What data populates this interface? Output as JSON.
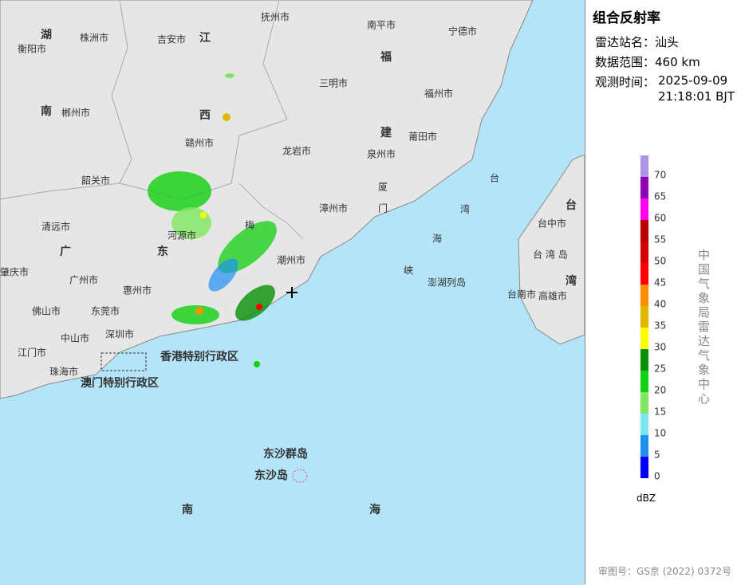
{
  "header": {
    "title": "组合反射率",
    "station_label": "雷达站名：",
    "station": "汕头",
    "range_label": "数据范围：",
    "range": "460 km",
    "time_label": "观测时间：",
    "date": "2025-09-09",
    "time": "21:18:01 BJT"
  },
  "legend": {
    "unit": "dBZ",
    "items": [
      {
        "value": 0,
        "color": "#0000f6"
      },
      {
        "value": 5,
        "color": "#1e90f0"
      },
      {
        "value": 10,
        "color": "#7ae6f0"
      },
      {
        "value": 15,
        "color": "#80e860"
      },
      {
        "value": 20,
        "color": "#10d010"
      },
      {
        "value": 25,
        "color": "#089008"
      },
      {
        "value": 30,
        "color": "#ffff00"
      },
      {
        "value": 35,
        "color": "#e0b800"
      },
      {
        "value": 40,
        "color": "#ff9000"
      },
      {
        "value": 45,
        "color": "#ff0000"
      },
      {
        "value": 50,
        "color": "#d40000"
      },
      {
        "value": 55,
        "color": "#b80000"
      },
      {
        "value": 60,
        "color": "#ff00f0"
      },
      {
        "value": 65,
        "color": "#9000b0"
      },
      {
        "value": 70,
        "color": "#b094e8"
      }
    ]
  },
  "credit": "中国气象局雷达气象中心",
  "footer": "审图号：GS京 (2022) 0372号",
  "map": {
    "labels": [
      "湖",
      "南",
      "株洲市",
      "衡阳市",
      "吉安市",
      "江",
      "西",
      "抚州市",
      "南平市",
      "宁德市",
      "福",
      "建",
      "郴州市",
      "三明市",
      "福州市",
      "赣州市",
      "莆田市",
      "龙岩市",
      "泉州市",
      "韶关市",
      "厦",
      "门",
      "漳州市",
      "台",
      "湾",
      "海",
      "峡",
      "台",
      "湾",
      "台中市",
      "台 湾 岛",
      "澎湖列岛",
      "台南市",
      "高雄市",
      "清远市",
      "广",
      "东",
      "河源市",
      "肇庆市",
      "广州市",
      "惠州市",
      "潮州市",
      "梅",
      "佛山市",
      "东莞市",
      "深圳市",
      "中山市",
      "江门市",
      "珠海市",
      "香港特别行政区",
      "澳门特别行政区",
      "东沙群岛",
      "东沙岛",
      "南",
      "海"
    ]
  }
}
